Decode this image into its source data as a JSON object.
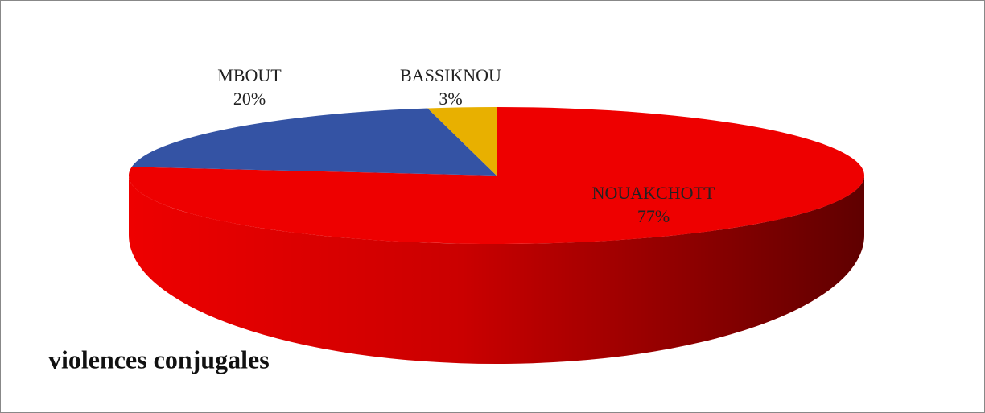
{
  "chart_data": {
    "type": "pie",
    "title": "violences conjugales",
    "categories": [
      "NOUAKCHOTT",
      "MBOUT",
      "BASSIKNOU"
    ],
    "values": [
      77,
      20,
      3
    ],
    "value_labels": [
      "77%",
      "20%",
      "3%"
    ],
    "colors": [
      "#ee0000",
      "#3453a4",
      "#e8b000"
    ]
  }
}
